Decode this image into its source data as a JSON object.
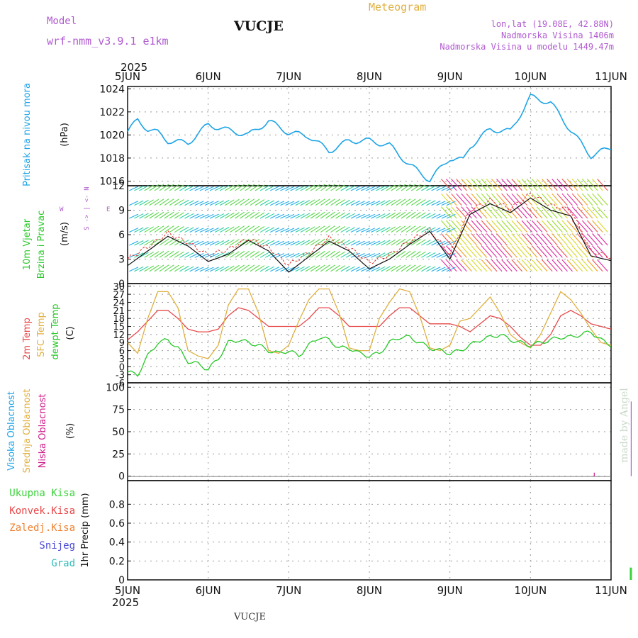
{
  "header": {
    "model_label": "Model",
    "model_name": "wrf-nmm_v3.9.1  e1km",
    "station": "VUCJE",
    "product": "Meteogram",
    "coords": "lon,lat (19.08E, 42.88N)",
    "elevation": "Nadmorska Visina 1406m",
    "model_elevation": "Nadmorska Visina u modelu 1449.47m",
    "footer_station": "VUCJE",
    "credit": "made by Angel"
  },
  "colors": {
    "pressure": "#1ea4e6",
    "temp2m": "#e8494b",
    "sfc_temp": "#e0b040",
    "dewpoint": "#28c828",
    "wind_speed": "#111111",
    "gust": "#e03030",
    "total_precip": "#3ad23a",
    "conv_precip": "#e84545",
    "freezing": "#f08030",
    "snow": "#4a4ad8",
    "hail": "#33bcbc",
    "high_cloud": "#1ea4e6",
    "mid_cloud": "#e0b040",
    "low_cloud": "#d01c8b",
    "model": "#b05ad0",
    "title": "#111111"
  },
  "chart_data": [
    {
      "type": "line",
      "panel": "pressure",
      "ylabel_lines": [
        "Pritisak na nivou mora"
      ],
      "unit": "(hPa)",
      "ylim": [
        1015.6,
        1024.2
      ],
      "yticks": [
        "1016",
        "1018",
        "1020",
        "1022",
        "1024"
      ],
      "grid": true,
      "x_hours": [
        0,
        3,
        6,
        9,
        12,
        18,
        24,
        30,
        36,
        42,
        48,
        54,
        60,
        66,
        72,
        78,
        84,
        90,
        96,
        100,
        102,
        108,
        114,
        120,
        126,
        132,
        138,
        144
      ],
      "series": [
        {
          "values": [
            1020.3,
            1021.3,
            1020.5,
            1020.2,
            1019.5,
            1019.3,
            1020.9,
            1020.4,
            1020.0,
            1021.2,
            1020.2,
            1019.9,
            1018.6,
            1019.5,
            1019.5,
            1019.1,
            1017.4,
            1016.1,
            1018.0,
            1017.8,
            1019.0,
            1020.5,
            1020.3,
            1023.3,
            1022.8,
            1020.4,
            1018.2,
            1018.9
          ]
        }
      ]
    },
    {
      "type": "line",
      "panel": "wind",
      "ylabel_lines": [
        "10m Vjetar",
        "Brzina i Pravac"
      ],
      "unit": "(m/s)",
      "direction_key": [
        "N",
        "<-",
        "|",
        "->",
        "S"
      ],
      "direction_key_side": [
        "W",
        "E"
      ],
      "ylim": [
        0,
        12
      ],
      "yticks": [
        "0",
        "3",
        "6",
        "9",
        "12"
      ],
      "grid": true,
      "x_hours": [
        0,
        6,
        12,
        18,
        24,
        30,
        36,
        42,
        48,
        54,
        60,
        66,
        72,
        78,
        84,
        90,
        96,
        102,
        108,
        114,
        120,
        126,
        132,
        138,
        144
      ],
      "series": [
        {
          "name": "speed",
          "values": [
            2.2,
            4.0,
            5.8,
            4.6,
            2.7,
            3.6,
            5.3,
            4.0,
            1.4,
            3.3,
            5.2,
            4.0,
            1.8,
            3.0,
            4.8,
            6.4,
            3.0,
            8.5,
            9.8,
            8.7,
            10.5,
            9.0,
            8.3,
            3.4,
            2.8
          ]
        },
        {
          "name": "gust",
          "values": [
            3.0,
            4.5,
            6.2,
            5.0,
            3.5,
            4.2,
            5.5,
            4.4,
            2.3,
            3.8,
            5.6,
            4.4,
            2.6,
            3.5,
            5.2,
            6.6,
            3.6,
            9.0,
            10.2,
            9.2,
            11.0,
            9.6,
            9.0,
            4.0,
            3.2
          ]
        }
      ]
    },
    {
      "type": "line",
      "panel": "temperature",
      "ylabel_lines": [
        "2m Temp",
        "SFC Temp",
        "dewpt Temp"
      ],
      "unit": "(C)",
      "ylim": [
        -6,
        31
      ],
      "yticks": [
        "-6",
        "-3",
        "0",
        "3",
        "6",
        "9",
        "12",
        "15",
        "18",
        "21",
        "24",
        "27",
        "30"
      ],
      "grid": true,
      "x_hours": [
        0,
        3,
        6,
        9,
        12,
        15,
        18,
        21,
        24,
        27,
        30,
        33,
        36,
        39,
        42,
        45,
        48,
        51,
        54,
        57,
        60,
        63,
        66,
        69,
        72,
        75,
        78,
        81,
        84,
        87,
        90,
        93,
        96,
        99,
        102,
        105,
        108,
        111,
        114,
        117,
        120,
        123,
        126,
        129,
        132,
        135,
        138,
        141,
        144
      ],
      "series": [
        {
          "name": "2m Temp",
          "values": [
            10,
            13,
            17,
            21,
            21,
            18,
            14,
            13,
            13,
            14,
            19,
            22,
            21,
            18,
            15,
            15,
            15,
            15,
            18,
            22,
            22,
            19,
            15,
            15,
            15,
            15,
            19,
            22,
            22,
            19,
            16,
            16,
            16,
            15,
            13,
            16,
            19,
            18,
            15,
            11,
            8,
            8,
            12,
            19,
            21,
            19,
            16,
            15,
            14
          ]
        },
        {
          "name": "SFC Temp",
          "values": [
            9,
            5,
            18,
            28,
            28,
            22,
            6,
            4,
            3,
            8,
            23,
            29,
            29,
            20,
            6,
            5,
            8,
            17,
            25,
            29,
            29,
            20,
            7,
            6,
            6,
            18,
            24,
            29,
            28,
            19,
            7,
            6,
            8,
            17,
            18,
            22,
            26,
            20,
            12,
            9,
            7,
            12,
            20,
            28,
            25,
            20,
            14,
            9,
            8
          ]
        },
        {
          "name": "dewpt Temp",
          "values": [
            -2,
            -3,
            4,
            9,
            10,
            7,
            2,
            1,
            -1,
            3,
            9,
            10,
            9,
            8,
            6,
            5,
            6,
            4,
            8,
            11,
            10,
            7,
            7,
            5,
            4,
            5,
            9,
            11,
            11,
            9,
            7,
            6,
            5,
            6,
            8,
            10,
            11,
            12,
            10,
            9,
            8,
            9,
            10,
            11,
            11,
            12,
            13,
            10,
            8
          ]
        }
      ]
    },
    {
      "type": "bar",
      "panel": "cloud",
      "ylabel_lines": [
        "Visoka Oblacnost",
        "Srednja Oblacnost",
        "Niska Oblacnost"
      ],
      "unit": "(%)",
      "ylim": [
        -5,
        105
      ],
      "yticks": [
        "0",
        "25",
        "50",
        "75",
        "100"
      ],
      "grid": true,
      "bars": [
        {
          "name": "Niska Oblacnost",
          "x_hour": 139,
          "value": 4
        },
        {
          "name": "Visoka Oblacnost",
          "x_hour": 150,
          "value": 84
        }
      ]
    },
    {
      "type": "bar",
      "panel": "precip",
      "ylabel_lines": [
        "1hr Precip (mm)"
      ],
      "legend": [
        "Ukupna Kisa",
        "Konvek.Kisa",
        "Zaledj.Kisa",
        "Snijeg",
        "Grad"
      ],
      "ylim": [
        0,
        1.05
      ],
      "yticks": [
        "0",
        "0.2",
        "0.4",
        "0.6",
        "0.8"
      ],
      "grid": true,
      "bars": [
        {
          "name": "Ukupna Kisa",
          "x_hour": 150,
          "value": 0.13
        }
      ]
    }
  ],
  "xaxis": {
    "year": "2025",
    "days": [
      "5JUN",
      "6JUN",
      "7JUN",
      "8JUN",
      "9JUN",
      "10JUN",
      "11JUN"
    ],
    "hours_total": 144
  }
}
